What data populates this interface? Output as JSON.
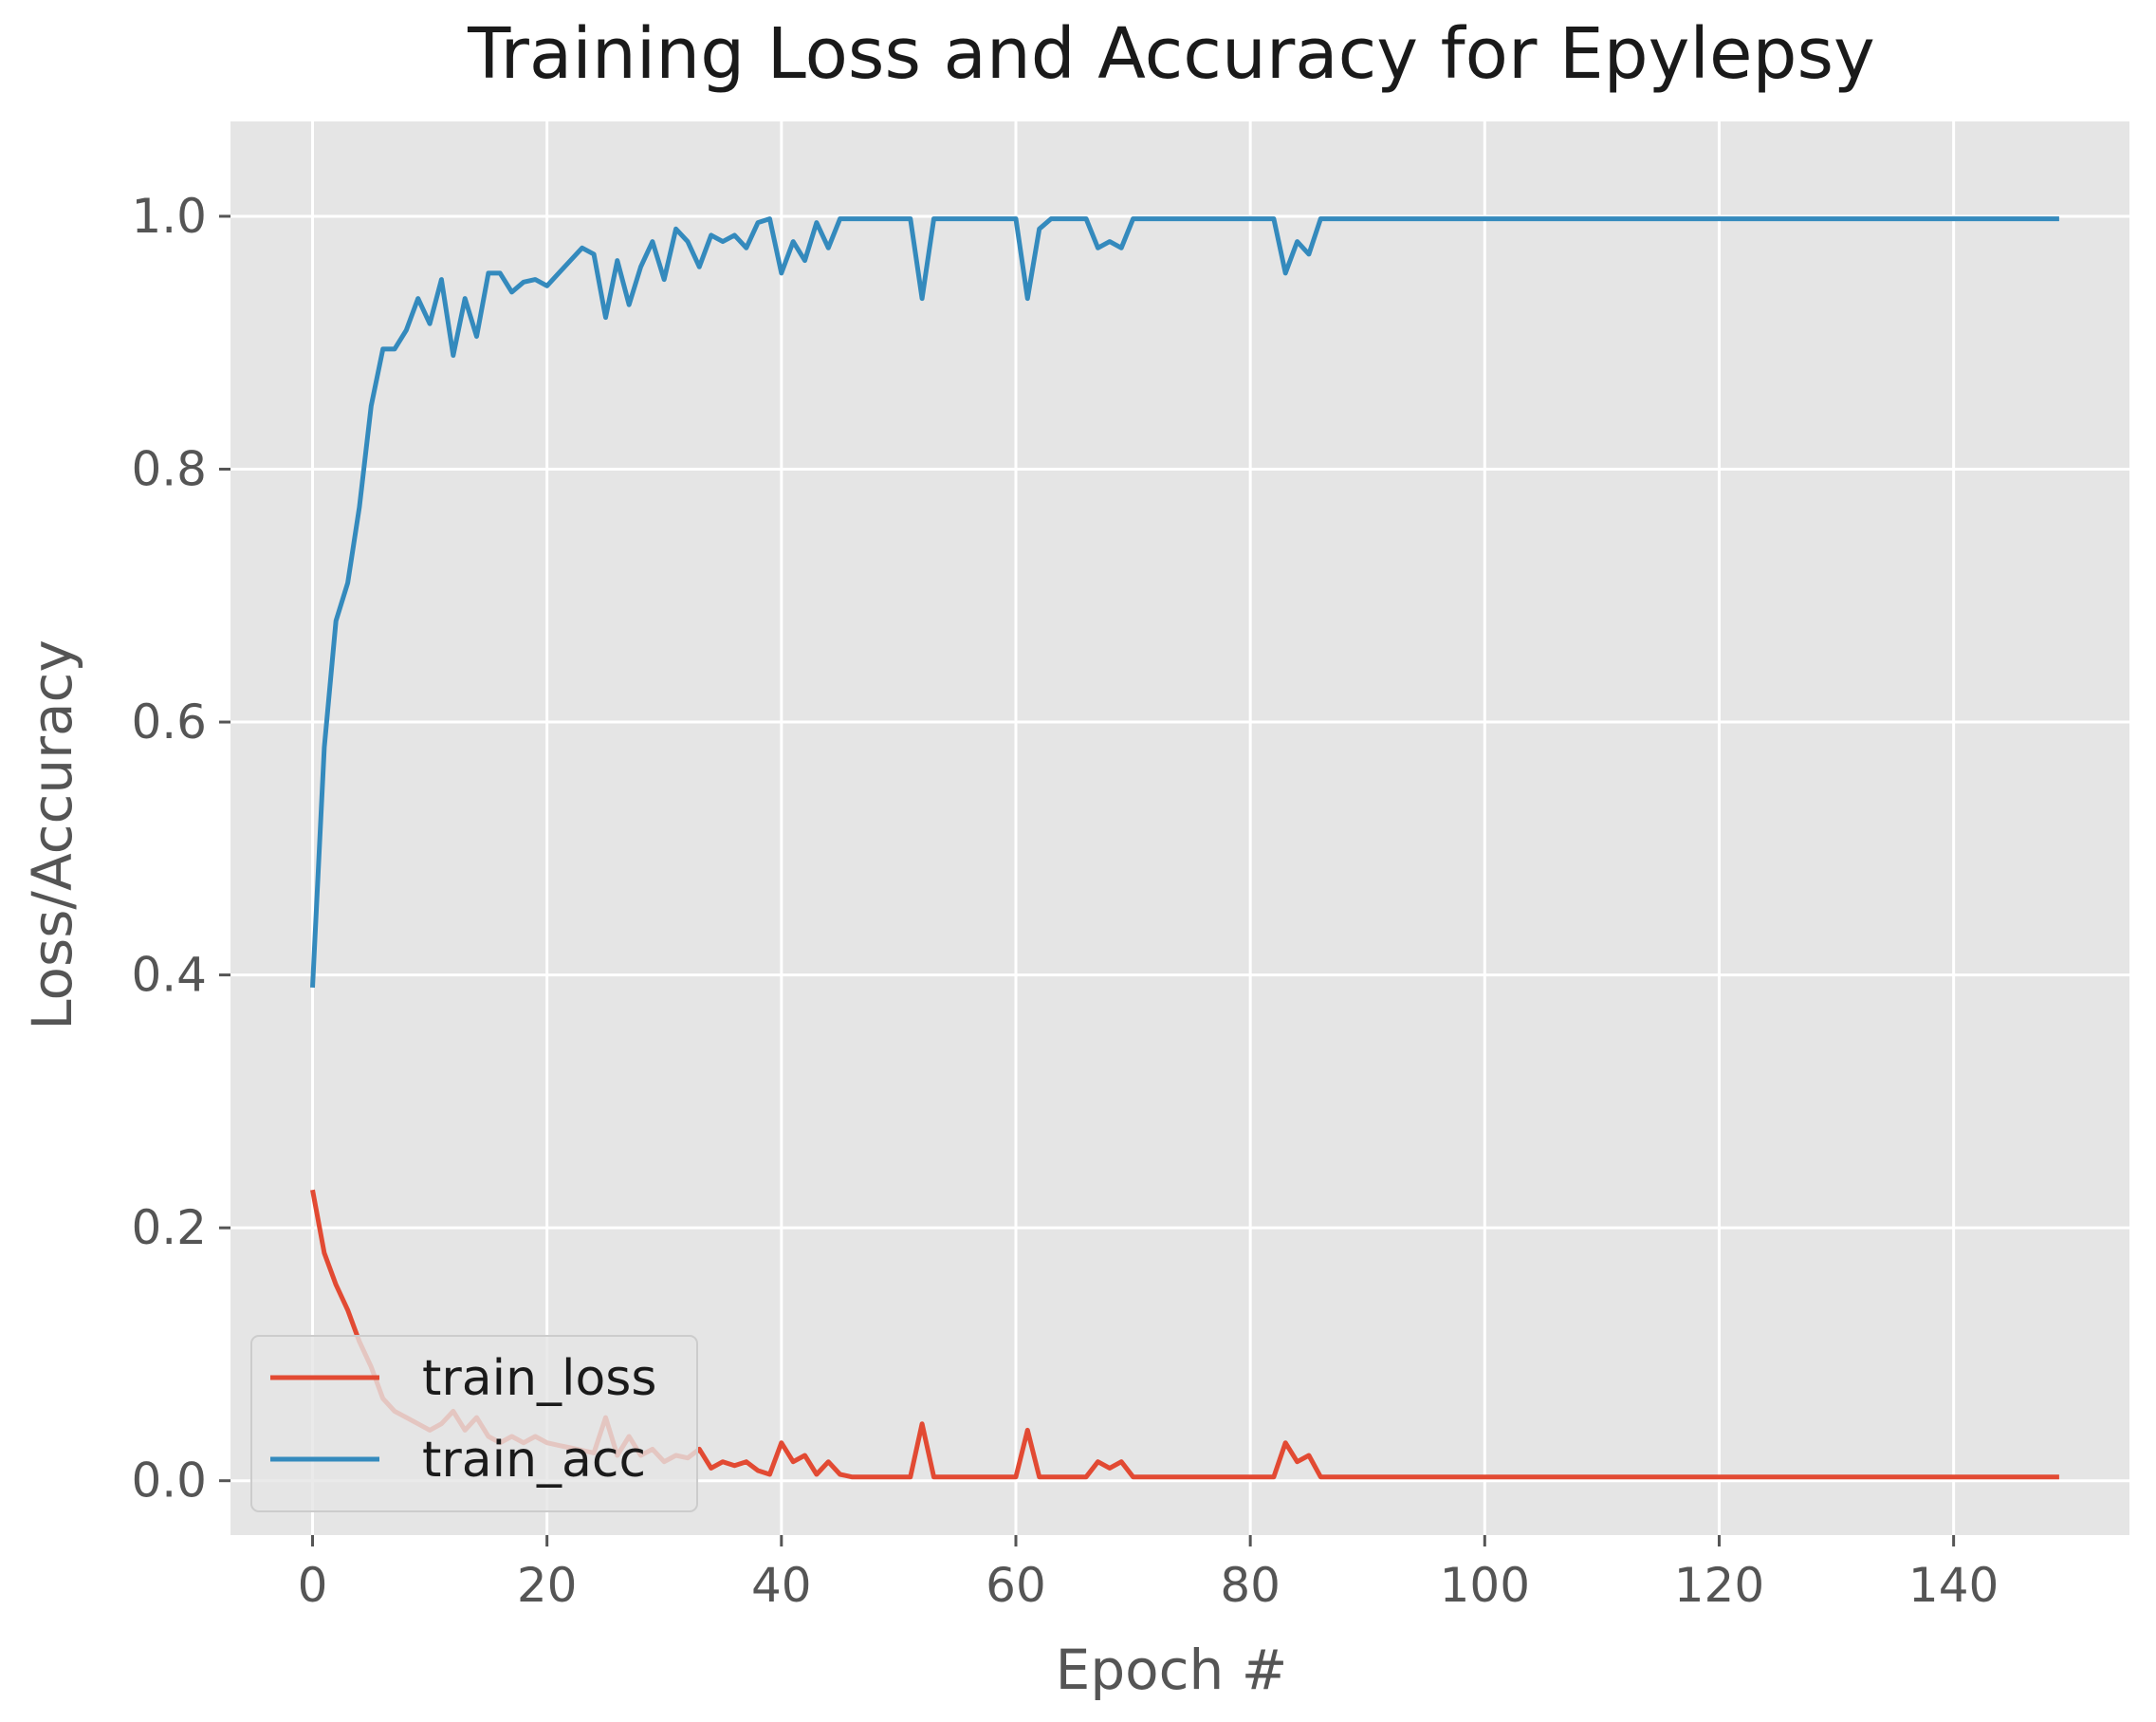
{
  "chart_data": {
    "type": "line",
    "title": "Training Loss and Accuracy for Epylepsy",
    "xlabel": "Epoch #",
    "ylabel": "Loss/Accuracy",
    "xlim": [
      -7,
      155
    ],
    "ylim": [
      -0.043,
      1.075
    ],
    "x_ticks": [
      0,
      20,
      40,
      60,
      80,
      100,
      120,
      140
    ],
    "y_ticks": [
      0.0,
      0.2,
      0.4,
      0.6,
      0.8,
      1.0
    ],
    "x_tick_labels": [
      "0",
      "20",
      "40",
      "60",
      "80",
      "100",
      "120",
      "140"
    ],
    "y_tick_labels": [
      "0.0",
      "0.2",
      "0.4",
      "0.6",
      "0.8",
      "1.0"
    ],
    "grid": true,
    "legend_position": "lower-left",
    "background_color": "#e5e5e5",
    "grid_color": "#ffffff",
    "series": [
      {
        "name": "train_loss",
        "color": "#e24a33",
        "points": [
          [
            0,
            0.23
          ],
          [
            1,
            0.18
          ],
          [
            2,
            0.155
          ],
          [
            3,
            0.135
          ],
          [
            4,
            0.11
          ],
          [
            5,
            0.09
          ],
          [
            6,
            0.065
          ],
          [
            7,
            0.055
          ],
          [
            8,
            0.05
          ],
          [
            9,
            0.045
          ],
          [
            10,
            0.04
          ],
          [
            11,
            0.045
          ],
          [
            12,
            0.055
          ],
          [
            13,
            0.04
          ],
          [
            14,
            0.05
          ],
          [
            15,
            0.035
          ],
          [
            16,
            0.03
          ],
          [
            17,
            0.035
          ],
          [
            18,
            0.03
          ],
          [
            19,
            0.035
          ],
          [
            20,
            0.03
          ],
          [
            21,
            0.028
          ],
          [
            22,
            0.026
          ],
          [
            23,
            0.024
          ],
          [
            24,
            0.022
          ],
          [
            25,
            0.05
          ],
          [
            26,
            0.02
          ],
          [
            27,
            0.035
          ],
          [
            28,
            0.02
          ],
          [
            29,
            0.025
          ],
          [
            30,
            0.015
          ],
          [
            31,
            0.02
          ],
          [
            32,
            0.018
          ],
          [
            33,
            0.025
          ],
          [
            34,
            0.01
          ],
          [
            35,
            0.015
          ],
          [
            36,
            0.012
          ],
          [
            37,
            0.015
          ],
          [
            38,
            0.008
          ],
          [
            39,
            0.005
          ],
          [
            40,
            0.03
          ],
          [
            41,
            0.015
          ],
          [
            42,
            0.02
          ],
          [
            43,
            0.005
          ],
          [
            44,
            0.015
          ],
          [
            45,
            0.005
          ],
          [
            46,
            0.003
          ],
          [
            50,
            0.003
          ],
          [
            51,
            0.003
          ],
          [
            52,
            0.045
          ],
          [
            53,
            0.003
          ],
          [
            60,
            0.003
          ],
          [
            61,
            0.04
          ],
          [
            62,
            0.003
          ],
          [
            66,
            0.003
          ],
          [
            67,
            0.015
          ],
          [
            68,
            0.01
          ],
          [
            69,
            0.015
          ],
          [
            70,
            0.003
          ],
          [
            82,
            0.003
          ],
          [
            83,
            0.03
          ],
          [
            84,
            0.015
          ],
          [
            85,
            0.02
          ],
          [
            86,
            0.003
          ],
          [
            149,
            0.003
          ]
        ]
      },
      {
        "name": "train_acc",
        "color": "#348abd",
        "points": [
          [
            0,
            0.39
          ],
          [
            1,
            0.58
          ],
          [
            2,
            0.68
          ],
          [
            3,
            0.71
          ],
          [
            4,
            0.77
          ],
          [
            5,
            0.85
          ],
          [
            6,
            0.895
          ],
          [
            7,
            0.895
          ],
          [
            8,
            0.91
          ],
          [
            9,
            0.935
          ],
          [
            10,
            0.915
          ],
          [
            11,
            0.95
          ],
          [
            12,
            0.89
          ],
          [
            13,
            0.935
          ],
          [
            14,
            0.905
          ],
          [
            15,
            0.955
          ],
          [
            16,
            0.955
          ],
          [
            17,
            0.94
          ],
          [
            18,
            0.948
          ],
          [
            19,
            0.95
          ],
          [
            20,
            0.945
          ],
          [
            21,
            0.955
          ],
          [
            22,
            0.965
          ],
          [
            23,
            0.975
          ],
          [
            24,
            0.97
          ],
          [
            25,
            0.92
          ],
          [
            26,
            0.965
          ],
          [
            27,
            0.93
          ],
          [
            28,
            0.96
          ],
          [
            29,
            0.98
          ],
          [
            30,
            0.95
          ],
          [
            31,
            0.99
          ],
          [
            32,
            0.98
          ],
          [
            33,
            0.96
          ],
          [
            34,
            0.985
          ],
          [
            35,
            0.98
          ],
          [
            36,
            0.985
          ],
          [
            37,
            0.975
          ],
          [
            38,
            0.995
          ],
          [
            39,
            0.998
          ],
          [
            40,
            0.955
          ],
          [
            41,
            0.98
          ],
          [
            42,
            0.965
          ],
          [
            43,
            0.995
          ],
          [
            44,
            0.975
          ],
          [
            45,
            0.998
          ],
          [
            46,
            0.998
          ],
          [
            51,
            0.998
          ],
          [
            52,
            0.935
          ],
          [
            53,
            0.998
          ],
          [
            60,
            0.998
          ],
          [
            61,
            0.935
          ],
          [
            62,
            0.99
          ],
          [
            63,
            0.998
          ],
          [
            66,
            0.998
          ],
          [
            67,
            0.975
          ],
          [
            68,
            0.98
          ],
          [
            69,
            0.975
          ],
          [
            70,
            0.998
          ],
          [
            82,
            0.998
          ],
          [
            83,
            0.955
          ],
          [
            84,
            0.98
          ],
          [
            85,
            0.97
          ],
          [
            86,
            0.998
          ],
          [
            149,
            0.998
          ]
        ]
      }
    ]
  }
}
